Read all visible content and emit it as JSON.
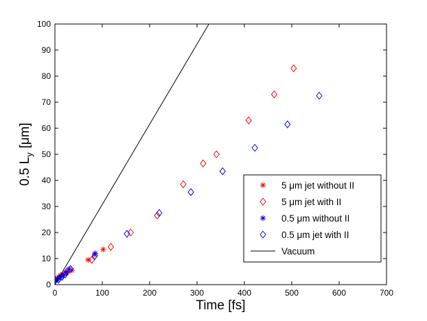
{
  "chart_data": {
    "type": "scatter",
    "title": "",
    "xlabel": "Time [fs]",
    "ylabel": "0.5 L",
    "ylabel_sub": "y",
    "ylabel_unit": "[μm]",
    "xlim": [
      0,
      700
    ],
    "ylim": [
      0,
      100
    ],
    "xticks": [
      0,
      100,
      200,
      300,
      400,
      500,
      600,
      700
    ],
    "yticks": [
      0,
      10,
      20,
      30,
      40,
      50,
      60,
      70,
      80,
      90,
      100
    ],
    "grid": false,
    "legend_position": "bottom-right",
    "series": [
      {
        "name": "5 μm jet without II",
        "marker": "star",
        "color": "#ff0000",
        "x": [
          2,
          5,
          8,
          12,
          16,
          22,
          28,
          36,
          70,
          84,
          102
        ],
        "y": [
          2,
          2.5,
          3,
          3.5,
          4,
          4.5,
          5,
          5.5,
          9.5,
          11.5,
          13.5
        ]
      },
      {
        "name": "5 μm jet with II",
        "marker": "diamond",
        "color": "#ff0000",
        "x": [
          25,
          78,
          118,
          160,
          216,
          271,
          313,
          341,
          409,
          463,
          504
        ],
        "y": [
          5,
          9.5,
          14.5,
          20,
          26.5,
          38.5,
          46.5,
          50,
          63,
          73,
          83
        ]
      },
      {
        "name": "0.5 μm without II",
        "marker": "star",
        "color": "#0000ff",
        "x": [
          2,
          5,
          9,
          13,
          18,
          24,
          30,
          85
        ],
        "y": [
          1.5,
          2,
          2.5,
          3,
          3.5,
          4.5,
          6,
          12
        ]
      },
      {
        "name": "0.5 μm jet with II",
        "marker": "diamond",
        "color": "#0000ff",
        "x": [
          8,
          15,
          22,
          33,
          84,
          152,
          220,
          287,
          354,
          422,
          491,
          558
        ],
        "y": [
          2,
          3,
          4,
          6,
          11,
          19.5,
          27.5,
          35.5,
          43.5,
          52.5,
          61.5,
          72.5
        ]
      },
      {
        "name": "Vacuum",
        "marker": "line",
        "color": "#000000",
        "x": [
          0,
          325
        ],
        "y": [
          0,
          100
        ]
      }
    ]
  }
}
